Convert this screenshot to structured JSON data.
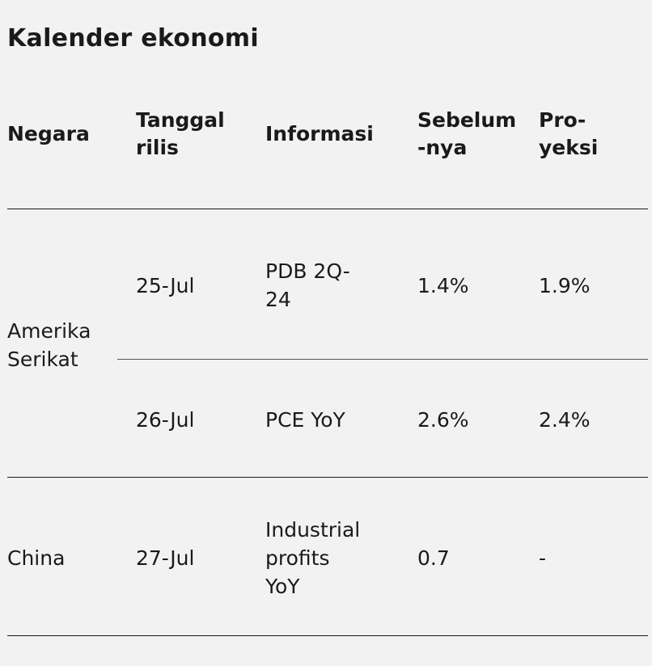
{
  "title": "Kalender ekonomi",
  "headers": {
    "country": "Negara",
    "release_date": [
      "Tanggal",
      "rilis"
    ],
    "info": "Informasi",
    "previous": [
      "Sebelum",
      "-nya"
    ],
    "projection": [
      "Pro-",
      "yeksi"
    ]
  },
  "rows": [
    {
      "country": [
        "Amerika",
        "Serikat"
      ],
      "entries": [
        {
          "date": "25-Jul",
          "info": [
            "PDB 2Q-",
            "24"
          ],
          "previous": "1.4%",
          "projection": "1.9%"
        },
        {
          "date": "26-Jul",
          "info": [
            "PCE YoY"
          ],
          "previous": "2.6%",
          "projection": "2.4%"
        }
      ]
    },
    {
      "country": [
        "China"
      ],
      "entries": [
        {
          "date": "27-Jul",
          "info": [
            "Industrial",
            "profits",
            "YoY"
          ],
          "previous": "0.7",
          "projection": "-"
        }
      ]
    }
  ]
}
